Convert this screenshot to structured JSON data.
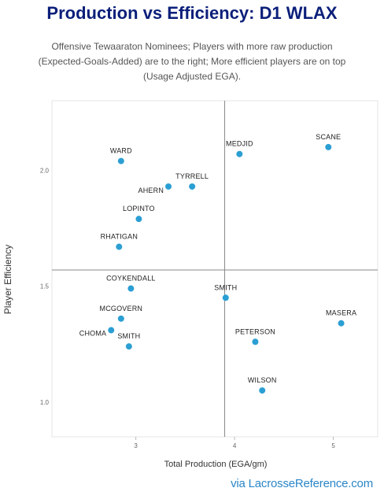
{
  "title": "Production vs Efficiency: D1 WLAX",
  "subtitle": "Offensive Tewaaraton Nominees; Players with more raw production (Expected-Goals-Added) are to the right; More efficient players are on top (Usage Adjusted EGA).",
  "credit": "via LacrosseReference.com",
  "colors": {
    "point": "#2b9fd4",
    "title": "#0b1f7a",
    "quadrant_line": "#888888"
  },
  "chart_data": {
    "type": "scatter",
    "xlabel": "Total Production (EGA/gm)",
    "ylabel": "Player Efficiency",
    "xlim": [
      2.15,
      5.45
    ],
    "ylim": [
      0.85,
      2.3
    ],
    "x_ticks": [
      3,
      4,
      5
    ],
    "x_tick_labels": [
      "3",
      "4",
      "5"
    ],
    "y_ticks": [
      1.0,
      1.5,
      2.0
    ],
    "y_tick_labels": [
      "1.0",
      "1.5",
      "2.0"
    ],
    "quadrant_lines": {
      "x": 3.9,
      "y": 1.57
    },
    "grid": false,
    "points": [
      {
        "label": "SCANE",
        "x": 4.95,
        "y": 2.1
      },
      {
        "label": "MEDJID",
        "x": 4.05,
        "y": 2.07
      },
      {
        "label": "WARD",
        "x": 2.85,
        "y": 2.04
      },
      {
        "label": "TYRRELL",
        "x": 3.57,
        "y": 1.93
      },
      {
        "label": "AHERN",
        "x": 3.33,
        "y": 1.93
      },
      {
        "label": "LOPINTO",
        "x": 3.03,
        "y": 1.79
      },
      {
        "label": "RHATIGAN",
        "x": 2.83,
        "y": 1.67
      },
      {
        "label": "COYKENDALL",
        "x": 2.95,
        "y": 1.49
      },
      {
        "label": "SMITH",
        "x": 3.91,
        "y": 1.45
      },
      {
        "label": "MASERA",
        "x": 5.08,
        "y": 1.34
      },
      {
        "label": "MCGOVERN",
        "x": 2.85,
        "y": 1.36
      },
      {
        "label": "PETERSON",
        "x": 4.21,
        "y": 1.26
      },
      {
        "label": "CHOMA",
        "x": 2.75,
        "y": 1.31
      },
      {
        "label": "SMITH",
        "x": 2.93,
        "y": 1.24
      },
      {
        "label": "WILSON",
        "x": 4.28,
        "y": 1.05
      }
    ]
  }
}
